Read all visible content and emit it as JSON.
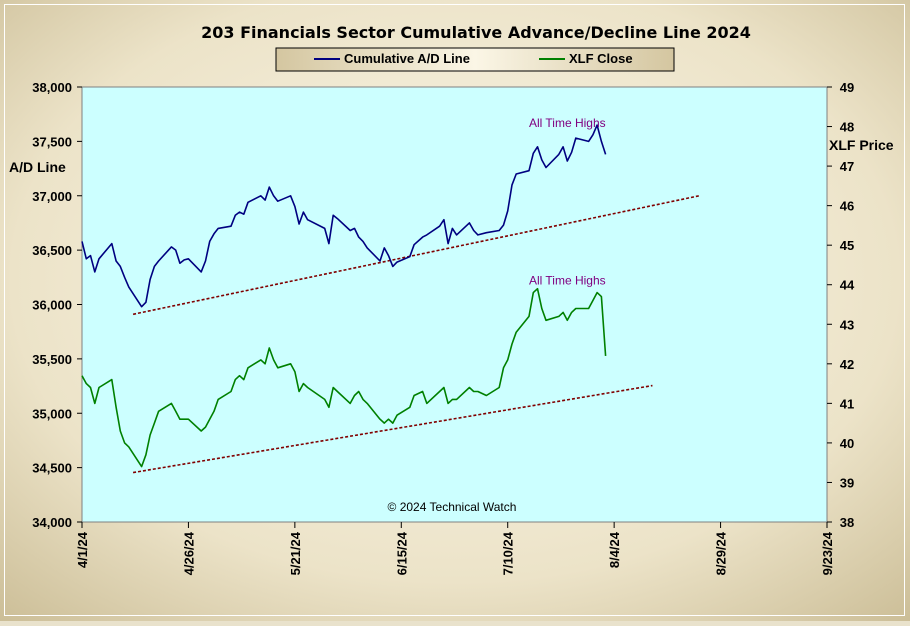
{
  "chart_data": {
    "type": "line",
    "title": "203 Financials  Sector Cumulative  Advance/Decline  Line 2024",
    "ylabel_left": "A/D Line",
    "ylabel_right": "XLF Price",
    "copyright": "© 2024 Technical Watch",
    "legend_position": "top-center",
    "grid": false,
    "x_range": [
      "2024-04-01",
      "2024-09-23"
    ],
    "x_ticks": [
      "4/1/24",
      "4/26/24",
      "5/21/24",
      "6/15/24",
      "7/10/24",
      "8/4/24",
      "8/29/24",
      "9/23/24"
    ],
    "y_left_range": [
      34000,
      38000
    ],
    "y_left_ticks": [
      "34,000",
      "34,500",
      "35,000",
      "35,500",
      "36,000",
      "36,500",
      "37,000",
      "37,500",
      "38,000"
    ],
    "y_right_range": [
      38,
      49
    ],
    "y_right_ticks": [
      "38",
      "39",
      "40",
      "41",
      "42",
      "43",
      "44",
      "45",
      "46",
      "47",
      "48",
      "49"
    ],
    "colors": {
      "ad_line": "#000080",
      "xlf": "#008000",
      "trend": "#800000",
      "plot_bg": "#ccffff"
    },
    "series": [
      {
        "name": "Cumulative A/D Line",
        "axis": "left",
        "color": "#000080",
        "x": [
          "2024-04-01",
          "2024-04-02",
          "2024-04-03",
          "2024-04-04",
          "2024-04-05",
          "2024-04-08",
          "2024-04-09",
          "2024-04-10",
          "2024-04-11",
          "2024-04-12",
          "2024-04-15",
          "2024-04-16",
          "2024-04-17",
          "2024-04-18",
          "2024-04-19",
          "2024-04-22",
          "2024-04-23",
          "2024-04-24",
          "2024-04-25",
          "2024-04-26",
          "2024-04-29",
          "2024-04-30",
          "2024-05-01",
          "2024-05-02",
          "2024-05-03",
          "2024-05-06",
          "2024-05-07",
          "2024-05-08",
          "2024-05-09",
          "2024-05-10",
          "2024-05-13",
          "2024-05-14",
          "2024-05-15",
          "2024-05-16",
          "2024-05-17",
          "2024-05-20",
          "2024-05-21",
          "2024-05-22",
          "2024-05-23",
          "2024-05-24",
          "2024-05-28",
          "2024-05-29",
          "2024-05-30",
          "2024-05-31",
          "2024-06-03",
          "2024-06-04",
          "2024-06-05",
          "2024-06-06",
          "2024-06-07",
          "2024-06-10",
          "2024-06-11",
          "2024-06-12",
          "2024-06-13",
          "2024-06-14",
          "2024-06-17",
          "2024-06-18",
          "2024-06-20",
          "2024-06-21",
          "2024-06-24",
          "2024-06-25",
          "2024-06-26",
          "2024-06-27",
          "2024-06-28",
          "2024-07-01",
          "2024-07-02",
          "2024-07-03",
          "2024-07-05",
          "2024-07-08",
          "2024-07-09",
          "2024-07-10",
          "2024-07-11",
          "2024-07-12",
          "2024-07-15",
          "2024-07-16",
          "2024-07-17",
          "2024-07-18",
          "2024-07-19",
          "2024-07-22",
          "2024-07-23",
          "2024-07-24",
          "2024-07-25",
          "2024-07-26",
          "2024-07-29",
          "2024-07-30",
          "2024-07-31",
          "2024-08-01",
          "2024-08-02"
        ],
        "values": [
          36580,
          36420,
          36450,
          36300,
          36420,
          36560,
          36400,
          36350,
          36250,
          36160,
          35980,
          36020,
          36230,
          36350,
          36400,
          36530,
          36500,
          36380,
          36410,
          36420,
          36300,
          36400,
          36580,
          36650,
          36700,
          36720,
          36820,
          36850,
          36830,
          36940,
          37000,
          36960,
          37080,
          37000,
          36950,
          37000,
          36900,
          36740,
          36850,
          36780,
          36700,
          36560,
          36820,
          36790,
          36680,
          36700,
          36620,
          36580,
          36520,
          36400,
          36520,
          36450,
          36350,
          36390,
          36440,
          36550,
          36620,
          36640,
          36720,
          36780,
          36560,
          36700,
          36640,
          36750,
          36680,
          36640,
          36660,
          36680,
          36730,
          36860,
          37100,
          37200,
          37230,
          37390,
          37450,
          37330,
          37260,
          37380,
          37450,
          37320,
          37400,
          37530,
          37500,
          37560,
          37650,
          37500,
          37380
        ]
      },
      {
        "name": "XLF Close",
        "axis": "right",
        "color": "#008000",
        "x": [
          "2024-04-01",
          "2024-04-02",
          "2024-04-03",
          "2024-04-04",
          "2024-04-05",
          "2024-04-08",
          "2024-04-09",
          "2024-04-10",
          "2024-04-11",
          "2024-04-12",
          "2024-04-15",
          "2024-04-16",
          "2024-04-17",
          "2024-04-18",
          "2024-04-19",
          "2024-04-22",
          "2024-04-23",
          "2024-04-24",
          "2024-04-25",
          "2024-04-26",
          "2024-04-29",
          "2024-04-30",
          "2024-05-01",
          "2024-05-02",
          "2024-05-03",
          "2024-05-06",
          "2024-05-07",
          "2024-05-08",
          "2024-05-09",
          "2024-05-10",
          "2024-05-13",
          "2024-05-14",
          "2024-05-15",
          "2024-05-16",
          "2024-05-17",
          "2024-05-20",
          "2024-05-21",
          "2024-05-22",
          "2024-05-23",
          "2024-05-24",
          "2024-05-28",
          "2024-05-29",
          "2024-05-30",
          "2024-05-31",
          "2024-06-03",
          "2024-06-04",
          "2024-06-05",
          "2024-06-06",
          "2024-06-07",
          "2024-06-10",
          "2024-06-11",
          "2024-06-12",
          "2024-06-13",
          "2024-06-14",
          "2024-06-17",
          "2024-06-18",
          "2024-06-20",
          "2024-06-21",
          "2024-06-24",
          "2024-06-25",
          "2024-06-26",
          "2024-06-27",
          "2024-06-28",
          "2024-07-01",
          "2024-07-02",
          "2024-07-03",
          "2024-07-05",
          "2024-07-08",
          "2024-07-09",
          "2024-07-10",
          "2024-07-11",
          "2024-07-12",
          "2024-07-15",
          "2024-07-16",
          "2024-07-17",
          "2024-07-18",
          "2024-07-19",
          "2024-07-22",
          "2024-07-23",
          "2024-07-24",
          "2024-07-25",
          "2024-07-26",
          "2024-07-29",
          "2024-07-30",
          "2024-07-31",
          "2024-08-01",
          "2024-08-02"
        ],
        "values": [
          41.7,
          41.5,
          41.4,
          41.0,
          41.4,
          41.6,
          40.9,
          40.3,
          40.0,
          39.9,
          39.4,
          39.7,
          40.2,
          40.5,
          40.8,
          41.0,
          40.8,
          40.6,
          40.6,
          40.6,
          40.3,
          40.4,
          40.6,
          40.8,
          41.1,
          41.3,
          41.6,
          41.7,
          41.6,
          41.9,
          42.1,
          42.0,
          42.4,
          42.1,
          41.9,
          42.0,
          41.8,
          41.3,
          41.5,
          41.4,
          41.1,
          40.9,
          41.4,
          41.3,
          41.0,
          41.2,
          41.3,
          41.1,
          41.0,
          40.6,
          40.5,
          40.6,
          40.5,
          40.7,
          40.9,
          41.2,
          41.3,
          41.0,
          41.3,
          41.4,
          41.0,
          41.1,
          41.1,
          41.4,
          41.3,
          41.3,
          41.2,
          41.4,
          41.9,
          42.1,
          42.5,
          42.8,
          43.2,
          43.8,
          43.9,
          43.4,
          43.1,
          43.2,
          43.3,
          43.1,
          43.3,
          43.4,
          43.4,
          43.6,
          43.8,
          43.7,
          42.2
        ]
      }
    ],
    "trendlines": [
      {
        "axis": "left",
        "color": "#800000",
        "style": "dashed",
        "start": [
          "2024-04-13",
          35910
        ],
        "end": [
          "2024-08-24",
          37000
        ]
      },
      {
        "axis": "right",
        "color": "#800000",
        "style": "dashed",
        "start": [
          "2024-04-13",
          39.25
        ],
        "end": [
          "2024-08-13",
          41.45
        ]
      }
    ],
    "annotations": [
      {
        "text": "All Time Highs",
        "axis": "left",
        "x": "2024-07-24",
        "y": 37630
      },
      {
        "text": "All Time Highs",
        "axis": "right",
        "x": "2024-07-24",
        "y": 44.0
      }
    ]
  }
}
